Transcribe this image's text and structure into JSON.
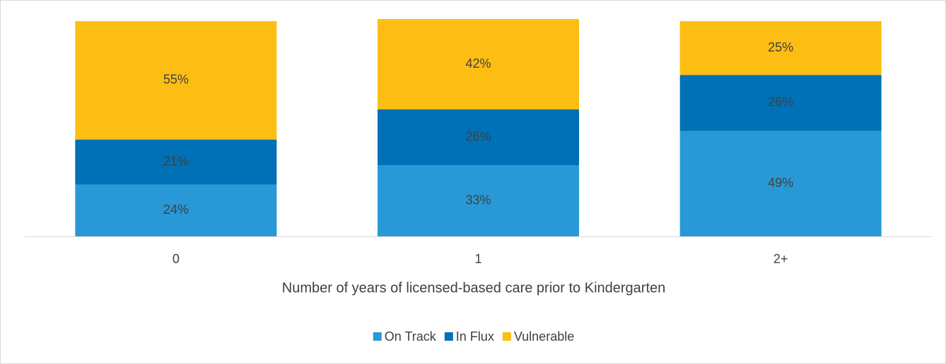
{
  "chart_data": {
    "type": "stacked_bar",
    "axis_label": "Number of years of licensed-based care prior to Kindergarten",
    "categories": [
      "0",
      "1",
      "2+"
    ],
    "series": [
      {
        "name": "On Track",
        "color": "#2899d6",
        "values": [
          24,
          33,
          49
        ],
        "value_labels": [
          "24%",
          "33%",
          "49%"
        ]
      },
      {
        "name": "In Flux",
        "color": "#0071b6",
        "values": [
          21,
          26,
          26
        ],
        "value_labels": [
          "21%",
          "26%",
          "26%"
        ]
      },
      {
        "name": "Vulnerable",
        "color": "#fdbe14",
        "values": [
          55,
          42,
          25
        ],
        "value_labels": [
          "55%",
          "42%",
          "25%"
        ]
      }
    ],
    "ylim": [
      0,
      100
    ],
    "legend": "bottom"
  }
}
